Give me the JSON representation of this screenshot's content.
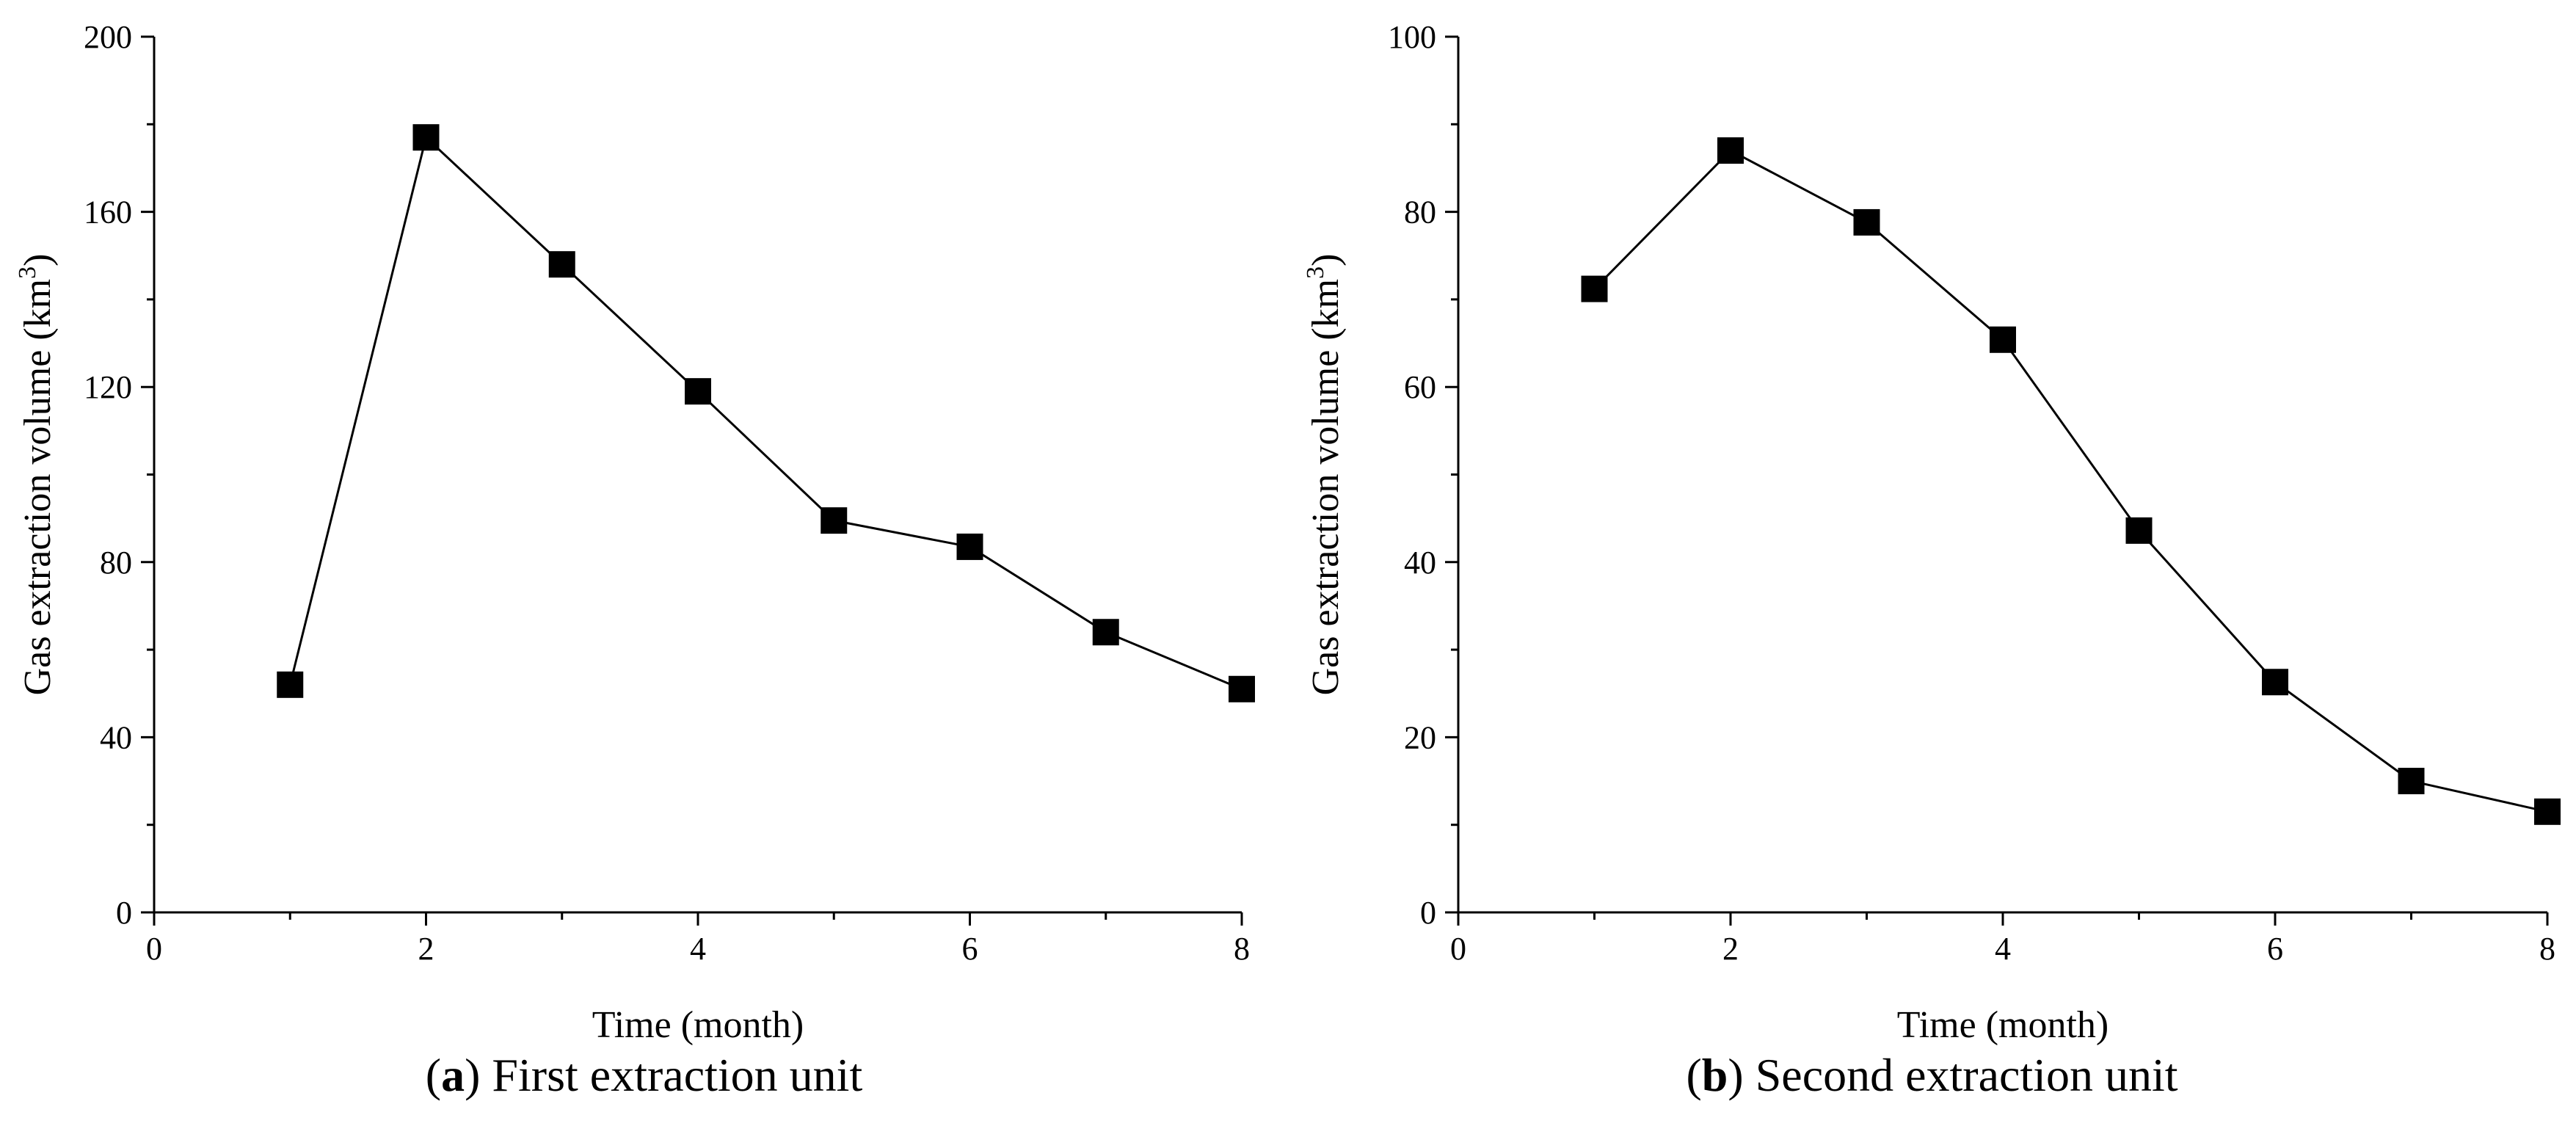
{
  "chart_data": [
    {
      "type": "line",
      "panel_letter": "a",
      "title": "First extraction unit",
      "xlabel": "Time (month)",
      "ylabel_base": "Gas extraction volume (km",
      "ylabel_sup": "3",
      "ylabel_close": ")",
      "xlim": [
        0,
        8
      ],
      "ylim": [
        0,
        200
      ],
      "x_ticks": [
        0,
        2,
        4,
        6,
        8
      ],
      "y_ticks": [
        0,
        40,
        80,
        120,
        160,
        200
      ],
      "series": [
        {
          "name": "First extraction unit",
          "marker": "square",
          "color": "#000000",
          "x": [
            1,
            2,
            3,
            4,
            5,
            6,
            7,
            8
          ],
          "y": [
            52,
            177,
            148,
            119,
            89.5,
            83.5,
            64,
            51
          ]
        }
      ]
    },
    {
      "type": "line",
      "panel_letter": "b",
      "title": "Second extraction unit",
      "xlabel": "Time (month)",
      "ylabel_base": "Gas extraction volume (km",
      "ylabel_sup": "3",
      "ylabel_close": ")",
      "xlim": [
        0,
        8
      ],
      "ylim": [
        0,
        100
      ],
      "x_ticks": [
        0,
        2,
        4,
        6,
        8
      ],
      "y_ticks": [
        0,
        20,
        40,
        60,
        80,
        100
      ],
      "series": [
        {
          "name": "Second extraction unit",
          "marker": "square",
          "color": "#000000",
          "x": [
            1,
            2,
            3,
            4,
            5,
            6,
            7,
            8
          ],
          "y": [
            71.2,
            87,
            78.8,
            65.4,
            43.6,
            26.3,
            15,
            11.5
          ]
        }
      ]
    }
  ]
}
